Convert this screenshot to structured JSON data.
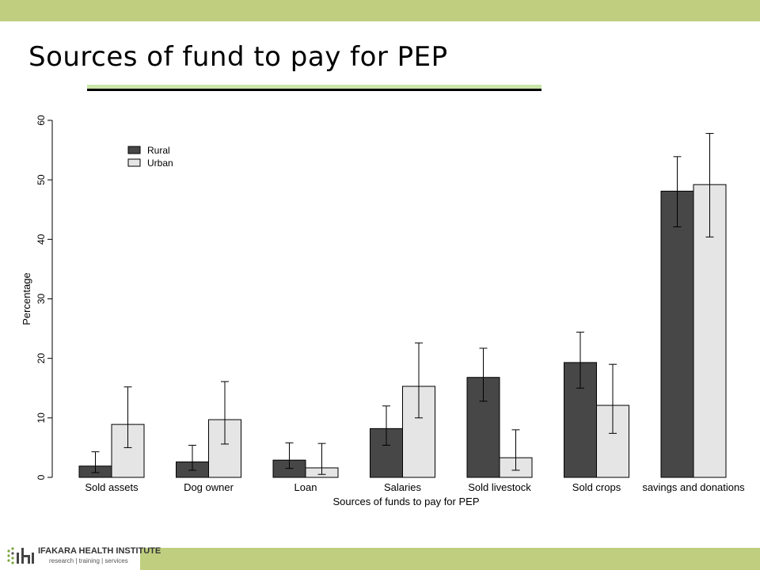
{
  "slide": {
    "title": "Sources of fund to pay for PEP",
    "logo_name": "IFAKARA HEALTH INSTITUTE",
    "logo_tagline": "research | training | services",
    "colors": {
      "band": "#bfcf7f",
      "rule_green": "#c9e5a8"
    }
  },
  "chart_data": {
    "type": "bar",
    "xlabel": "Sources of funds to pay for PEP",
    "ylabel": "Percentage",
    "ylim": [
      0,
      60
    ],
    "yticks": [
      0,
      10,
      20,
      30,
      40,
      50,
      60
    ],
    "grid": false,
    "legend_position": "top-left",
    "categories": [
      "Sold assets",
      "Dog owner",
      "Loan",
      "Salaries",
      "Sold livestock",
      "Sold crops",
      "savings and donations"
    ],
    "series": [
      {
        "name": "Rural",
        "color": "#474747",
        "values": [
          1.9,
          2.6,
          2.9,
          8.2,
          16.8,
          19.3,
          48.1
        ],
        "error_low": [
          0.8,
          1.2,
          1.5,
          5.4,
          12.8,
          15.0,
          42.1
        ],
        "error_high": [
          4.3,
          5.4,
          5.8,
          12.0,
          21.7,
          24.4,
          53.9
        ]
      },
      {
        "name": "Urban",
        "color": "#e5e5e5",
        "values": [
          8.9,
          9.7,
          1.6,
          15.3,
          3.3,
          12.1,
          49.2
        ],
        "error_low": [
          5.0,
          5.6,
          0.5,
          10.0,
          1.2,
          7.4,
          40.4
        ],
        "error_high": [
          15.2,
          16.1,
          5.7,
          22.6,
          8.0,
          19.0,
          57.8
        ]
      }
    ]
  }
}
